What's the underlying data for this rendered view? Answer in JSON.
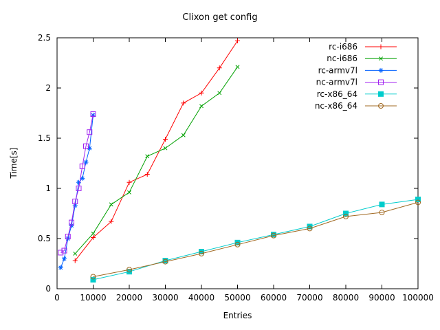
{
  "chart_data": {
    "type": "line",
    "title": "Clixon get config",
    "xlabel": "Entries",
    "ylabel": "Time[s]",
    "xlim": [
      0,
      100000
    ],
    "ylim": [
      0,
      2.5
    ],
    "grid": false,
    "legend_position": "top-right-inside",
    "background": "#ffffff",
    "axis_color": "#000000",
    "xticks": [
      0,
      10000,
      20000,
      30000,
      40000,
      50000,
      60000,
      70000,
      80000,
      90000,
      100000
    ],
    "xtick_labels": [
      "0",
      "10000",
      "20000",
      "30000",
      "40000",
      "50000",
      "60000",
      "70000",
      "80000",
      "90000",
      "100000"
    ],
    "yticks": [
      0,
      0.5,
      1,
      1.5,
      2,
      2.5
    ],
    "ytick_labels": [
      "0",
      "0.5",
      "1",
      "1.5",
      "2",
      "2.5"
    ],
    "series": [
      {
        "name": "rc-i686",
        "color": "#ff0000",
        "marker": "plus",
        "x": [
          5000,
          10000,
          15000,
          20000,
          25000,
          30000,
          35000,
          40000,
          45000,
          50000
        ],
        "y": [
          0.28,
          0.51,
          0.67,
          1.06,
          1.14,
          1.49,
          1.85,
          1.95,
          2.2,
          2.47
        ]
      },
      {
        "name": "nc-i686",
        "color": "#00a000",
        "marker": "cross",
        "x": [
          5000,
          10000,
          15000,
          20000,
          25000,
          30000,
          35000,
          40000,
          45000,
          50000
        ],
        "y": [
          0.35,
          0.55,
          0.84,
          0.96,
          1.32,
          1.4,
          1.53,
          1.82,
          1.95,
          2.21
        ]
      },
      {
        "name": "rc-armv7l",
        "color": "#0060ff",
        "marker": "asterisk",
        "x": [
          1000,
          2000,
          3000,
          4000,
          5000,
          6000,
          7000,
          8000,
          9000,
          10000
        ],
        "y": [
          0.21,
          0.3,
          0.5,
          0.63,
          0.83,
          1.06,
          1.1,
          1.26,
          1.4,
          1.73
        ]
      },
      {
        "name": "nc-armv7l",
        "color": "#a020f0",
        "marker": "square-open",
        "x": [
          1000,
          2000,
          3000,
          4000,
          5000,
          6000,
          7000,
          8000,
          9000,
          10000
        ],
        "y": [
          0.36,
          0.38,
          0.52,
          0.66,
          0.87,
          1.0,
          1.22,
          1.42,
          1.56,
          1.74
        ]
      },
      {
        "name": "rc-x86_64",
        "color": "#00cccc",
        "marker": "square-filled",
        "x": [
          10000,
          20000,
          30000,
          40000,
          50000,
          60000,
          70000,
          80000,
          90000,
          100000
        ],
        "y": [
          0.09,
          0.17,
          0.28,
          0.37,
          0.46,
          0.54,
          0.62,
          0.75,
          0.84,
          0.89
        ]
      },
      {
        "name": "nc-x86_64",
        "color": "#a06820",
        "marker": "circle-open",
        "x": [
          10000,
          20000,
          30000,
          40000,
          50000,
          60000,
          70000,
          80000,
          90000,
          100000
        ],
        "y": [
          0.12,
          0.19,
          0.27,
          0.35,
          0.44,
          0.53,
          0.6,
          0.72,
          0.76,
          0.86
        ]
      }
    ]
  }
}
